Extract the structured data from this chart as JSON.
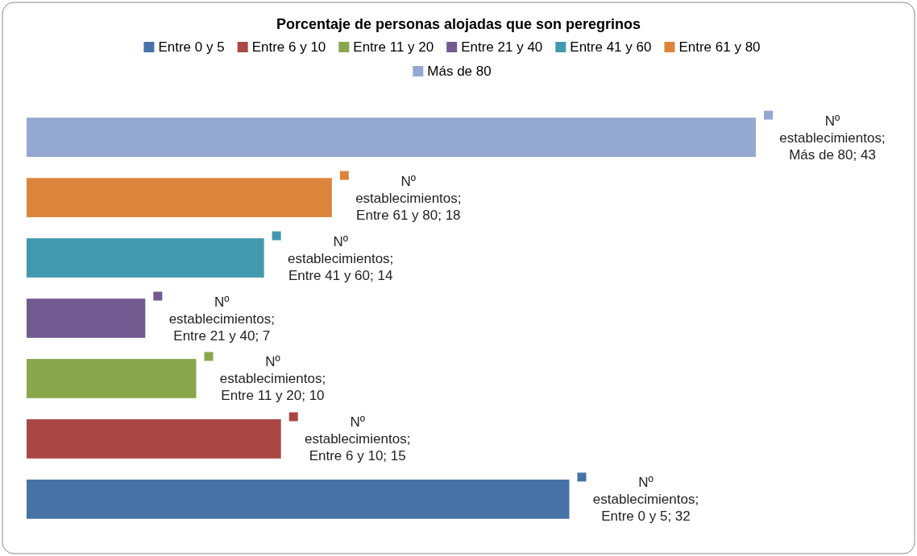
{
  "chart_data": {
    "type": "bar",
    "orientation": "horizontal",
    "stacked": true,
    "title": "Porcentaje de personas alojadas que son peregrinos",
    "categories": [
      null,
      null,
      null,
      null,
      null,
      null,
      null
    ],
    "series": [
      {
        "name": "Entre 0 y 5",
        "color": "#4672a8",
        "values": [
          null,
          null,
          null,
          null,
          null,
          null,
          32
        ],
        "value_labels": [
          null,
          null,
          null,
          null,
          null,
          null,
          "Nº establecimientos; Entre 0 y 5; 32"
        ]
      },
      {
        "name": "Entre 6 y 10",
        "color": "#a94744",
        "values": [
          null,
          null,
          null,
          null,
          null,
          15,
          null
        ],
        "value_labels": [
          null,
          null,
          null,
          null,
          null,
          "Nº establecimientos; Entre 6 y 10; 15",
          null
        ]
      },
      {
        "name": "Entre 11 y 20",
        "color": "#8aa64c",
        "values": [
          null,
          null,
          null,
          null,
          10,
          null,
          null
        ],
        "value_labels": [
          null,
          null,
          null,
          null,
          "Nº establecimientos; Entre 11 y 20; 10",
          null,
          null
        ]
      },
      {
        "name": "Entre 21 y 40",
        "color": "#735a91",
        "values": [
          null,
          null,
          null,
          7,
          null,
          null,
          null
        ],
        "value_labels": [
          null,
          null,
          null,
          "Nº establecimientos; Entre 21 y 40; 7",
          null,
          null,
          null
        ]
      },
      {
        "name": "Entre 41 y 60",
        "color": "#4299ad",
        "values": [
          null,
          null,
          14,
          null,
          null,
          null,
          null
        ],
        "value_labels": [
          null,
          null,
          "Nº establecimientos; Entre 41 y 60; 14",
          null,
          null,
          null,
          null
        ]
      },
      {
        "name": "Entre 61 y 80",
        "color": "#dd843c",
        "values": [
          null,
          18,
          null,
          null,
          null,
          null,
          null
        ],
        "value_labels": [
          null,
          "Nº establecimientos; Entre 61 y 80; 18",
          null,
          null,
          null,
          null,
          null
        ]
      },
      {
        "name": "Más de 80",
        "color": "#94a8d2",
        "values": [
          43,
          null,
          null,
          null,
          null,
          null,
          null
        ],
        "value_labels": [
          "Nº establecimientos; Más de 80; 43",
          null,
          null,
          null,
          null,
          null,
          null
        ]
      }
    ],
    "legend": "top"
  }
}
